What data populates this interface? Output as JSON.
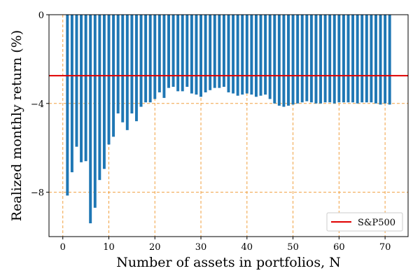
{
  "chart_data": {
    "type": "bar",
    "xlabel": "Number of assets in portfolios, N",
    "ylabel": "Realized monthly return (%)",
    "xlim": [
      -3,
      75
    ],
    "ylim": [
      -10,
      0
    ],
    "xticks": [
      0,
      10,
      20,
      30,
      40,
      50,
      60,
      70
    ],
    "yticks": [
      0,
      -4,
      -8
    ],
    "grid": "dashed-orange",
    "legend_position": "lower-right",
    "x": [
      1,
      2,
      3,
      4,
      5,
      6,
      7,
      8,
      9,
      10,
      11,
      12,
      13,
      14,
      15,
      16,
      17,
      18,
      19,
      20,
      21,
      22,
      23,
      24,
      25,
      26,
      27,
      28,
      29,
      30,
      31,
      32,
      33,
      34,
      35,
      36,
      37,
      38,
      39,
      40,
      41,
      42,
      43,
      44,
      45,
      46,
      47,
      48,
      49,
      50,
      51,
      52,
      53,
      54,
      55,
      56,
      57,
      58,
      59,
      60,
      61,
      62,
      63,
      64,
      65,
      66,
      67,
      68,
      69,
      70,
      71
    ],
    "series": [
      {
        "color": "#1f77b4",
        "values": [
          -8.15,
          -7.1,
          -5.95,
          -6.65,
          -6.6,
          -9.4,
          -8.7,
          -7.45,
          -6.95,
          -5.85,
          -5.5,
          -4.45,
          -4.85,
          -5.2,
          -4.45,
          -4.8,
          -4.15,
          -3.95,
          -3.95,
          -3.8,
          -3.5,
          -3.75,
          -3.3,
          -3.25,
          -3.45,
          -3.45,
          -3.25,
          -3.55,
          -3.6,
          -3.7,
          -3.5,
          -3.4,
          -3.3,
          -3.3,
          -3.25,
          -3.5,
          -3.55,
          -3.65,
          -3.6,
          -3.55,
          -3.6,
          -3.7,
          -3.65,
          -3.6,
          -3.8,
          -4.0,
          -4.1,
          -4.15,
          -4.1,
          -4.05,
          -4.0,
          -3.95,
          -3.9,
          -3.95,
          -4.0,
          -4.0,
          -3.95,
          -3.95,
          -4.0,
          -3.95,
          -3.95,
          -3.95,
          -3.95,
          -4.0,
          -3.95,
          -3.95,
          -3.95,
          -4.0,
          -4.05,
          -4.0,
          -4.05
        ]
      }
    ],
    "reference_line": {
      "name": "S&P500",
      "value": -2.75,
      "color": "#e00000"
    }
  }
}
